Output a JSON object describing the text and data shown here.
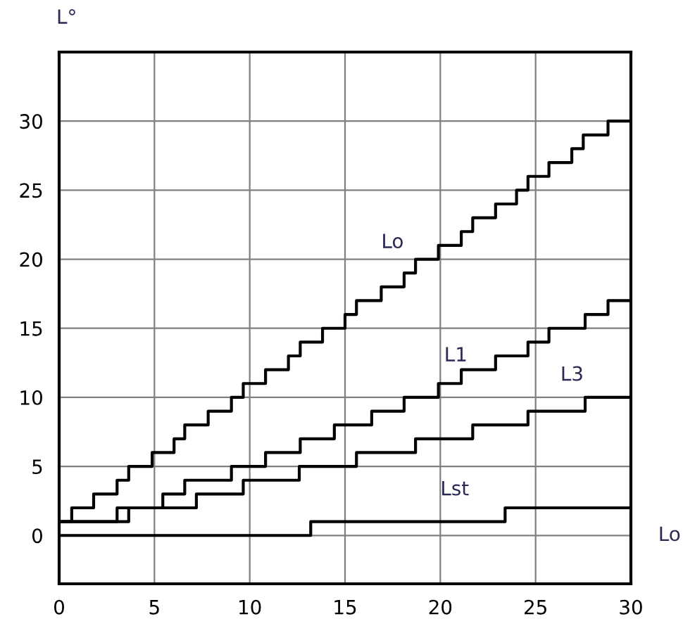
{
  "chart_data": {
    "type": "step",
    "xlabel": "Lo",
    "ylabel": "L°",
    "xlim": [
      0,
      30
    ],
    "ylim": [
      -3.5,
      35
    ],
    "xticks": [
      0,
      5,
      10,
      15,
      20,
      25,
      30
    ],
    "yticks": [
      0,
      5,
      10,
      15,
      20,
      25,
      30
    ],
    "grid": true,
    "legend": false,
    "marker": "none",
    "line_style": "solid",
    "series": [
      {
        "name": "Lo",
        "color": "#000000",
        "x": [
          0,
          0.66,
          1.81,
          3.04,
          3.65,
          4.88,
          6.03,
          6.59,
          7.82,
          9.04,
          9.66,
          10.83,
          12.03,
          12.65,
          13.82,
          15.0,
          15.6,
          16.9,
          18.1,
          18.7,
          19.9,
          21.1,
          21.7,
          22.9,
          24.0,
          24.6,
          25.7,
          26.9,
          27.5,
          28.8,
          30
        ],
        "values": [
          1,
          2,
          3,
          4,
          5,
          6,
          7,
          8,
          9,
          10,
          11,
          12,
          13,
          14,
          15,
          16,
          17,
          18,
          19,
          20,
          21,
          22,
          23,
          24,
          25,
          26,
          27,
          28,
          29,
          30,
          30
        ]
      },
      {
        "name": "L1",
        "color": "#000000",
        "x": [
          0,
          3.04,
          5.44,
          6.59,
          9.04,
          10.83,
          12.65,
          14.44,
          16.4,
          18.1,
          19.9,
          21.1,
          22.9,
          24.6,
          25.7,
          27.6,
          28.8,
          30
        ],
        "values": [
          1,
          2,
          3,
          4,
          5,
          6,
          7,
          8,
          9,
          10,
          11,
          12,
          13,
          14,
          15,
          16,
          17,
          17
        ]
      },
      {
        "name": "L3",
        "color": "#000000",
        "x": [
          0,
          3.65,
          7.2,
          9.66,
          12.6,
          15.6,
          18.7,
          21.7,
          24.6,
          27.6,
          30
        ],
        "values": [
          1,
          2,
          3,
          4,
          5,
          6,
          7,
          8,
          9,
          10,
          10
        ]
      },
      {
        "name": "Lst",
        "color": "#000000",
        "x": [
          0,
          13.2,
          23.4,
          30
        ],
        "values": [
          0,
          1,
          2,
          2
        ]
      }
    ]
  }
}
